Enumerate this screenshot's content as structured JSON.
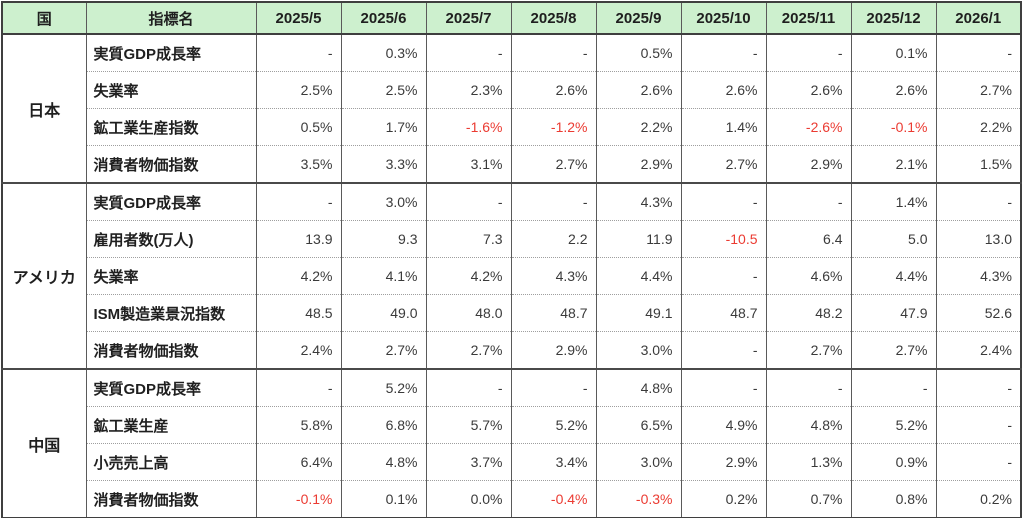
{
  "colors": {
    "header_bg": "#cdf0ce",
    "negative_text": "#eb3b32",
    "value_text": "#3a3a3a",
    "label_text": "#1f1f1f",
    "solid_border": "#4a4a4a",
    "dotted_border": "#9e9e9e"
  },
  "chart_data": {
    "type": "table",
    "columns": [
      "国",
      "指標名",
      "2025/5",
      "2025/6",
      "2025/7",
      "2025/8",
      "2025/9",
      "2025/10",
      "2025/11",
      "2025/12",
      "2026/1"
    ],
    "groups": [
      {
        "country": "日本",
        "rows": [
          {
            "indicator": "実質GDP成長率",
            "values": [
              "-",
              "0.3%",
              "-",
              "-",
              "0.5%",
              "-",
              "-",
              "0.1%",
              "-"
            ]
          },
          {
            "indicator": "失業率",
            "values": [
              "2.5%",
              "2.5%",
              "2.3%",
              "2.6%",
              "2.6%",
              "2.6%",
              "2.6%",
              "2.6%",
              "2.7%"
            ]
          },
          {
            "indicator": "鉱工業生産指数",
            "values": [
              "0.5%",
              "1.7%",
              "-1.6%",
              "-1.2%",
              "2.2%",
              "1.4%",
              "-2.6%",
              "-0.1%",
              "2.2%"
            ]
          },
          {
            "indicator": "消費者物価指数",
            "values": [
              "3.5%",
              "3.3%",
              "3.1%",
              "2.7%",
              "2.9%",
              "2.7%",
              "2.9%",
              "2.1%",
              "1.5%"
            ]
          }
        ]
      },
      {
        "country": "アメリカ",
        "rows": [
          {
            "indicator": "実質GDP成長率",
            "values": [
              "-",
              "3.0%",
              "-",
              "-",
              "4.3%",
              "-",
              "-",
              "1.4%",
              "-"
            ]
          },
          {
            "indicator": "雇用者数(万人)",
            "values": [
              "13.9",
              "9.3",
              "7.3",
              "2.2",
              "11.9",
              "-10.5",
              "6.4",
              "5.0",
              "13.0"
            ]
          },
          {
            "indicator": "失業率",
            "values": [
              "4.2%",
              "4.1%",
              "4.2%",
              "4.3%",
              "4.4%",
              "-",
              "4.6%",
              "4.4%",
              "4.3%"
            ]
          },
          {
            "indicator": "ISM製造業景況指数",
            "values": [
              "48.5",
              "49.0",
              "48.0",
              "48.7",
              "49.1",
              "48.7",
              "48.2",
              "47.9",
              "52.6"
            ]
          },
          {
            "indicator": "消費者物価指数",
            "values": [
              "2.4%",
              "2.7%",
              "2.7%",
              "2.9%",
              "3.0%",
              "-",
              "2.7%",
              "2.7%",
              "2.4%"
            ]
          }
        ]
      },
      {
        "country": "中国",
        "rows": [
          {
            "indicator": "実質GDP成長率",
            "values": [
              "-",
              "5.2%",
              "-",
              "-",
              "4.8%",
              "-",
              "-",
              "-",
              "-"
            ]
          },
          {
            "indicator": "鉱工業生産",
            "values": [
              "5.8%",
              "6.8%",
              "5.7%",
              "5.2%",
              "6.5%",
              "4.9%",
              "4.8%",
              "5.2%",
              "-"
            ]
          },
          {
            "indicator": "小売売上高",
            "values": [
              "6.4%",
              "4.8%",
              "3.7%",
              "3.4%",
              "3.0%",
              "2.9%",
              "1.3%",
              "0.9%",
              "-"
            ]
          },
          {
            "indicator": "消費者物価指数",
            "values": [
              "-0.1%",
              "0.1%",
              "0.0%",
              "-0.4%",
              "-0.3%",
              "0.2%",
              "0.7%",
              "0.8%",
              "0.2%"
            ]
          }
        ]
      }
    ]
  }
}
